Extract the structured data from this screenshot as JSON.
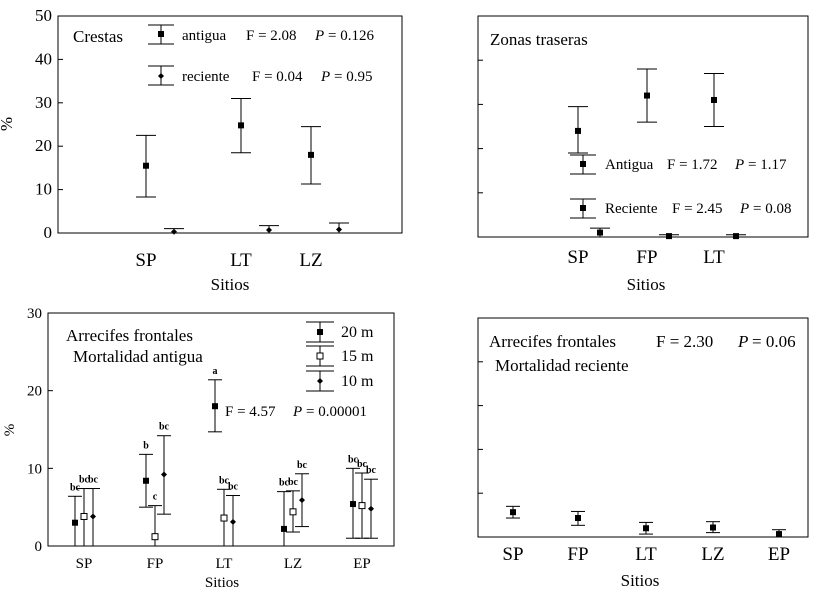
{
  "chart_data": [
    {
      "type": "scatter",
      "title": "Crestas",
      "xlabel": "Sitios",
      "ylabel": "%",
      "ylim": [
        0,
        50
      ],
      "yticks": [
        "0",
        "10",
        "20",
        "30",
        "40",
        "50"
      ],
      "categories": [
        "SP",
        "LT",
        "LZ"
      ],
      "legend_position": "top-right",
      "series": [
        {
          "name": "antigua",
          "marker": "square",
          "values": [
            15.5,
            24.8,
            18.0
          ],
          "lower": [
            8.3,
            18.5,
            11.3
          ],
          "upper": [
            22.5,
            31.0,
            24.5
          ]
        },
        {
          "name": "reciente",
          "marker": "diamond",
          "values": [
            0.3,
            0.7,
            0.8
          ],
          "lower": [
            0.0,
            0.0,
            0.0
          ],
          "upper": [
            1.0,
            1.7,
            2.3
          ]
        }
      ],
      "stats": [
        {
          "label": "antigua",
          "f_text": "F = 2.08",
          "p_label": "P",
          "p_value": "= 0.126"
        },
        {
          "label": "reciente",
          "f_text": "F = 0.04",
          "p_label": "P",
          "p_value": "= 0.95"
        }
      ]
    },
    {
      "type": "scatter",
      "title": "Zonas traseras",
      "xlabel": "Sitios",
      "ylabel": "",
      "ylim": [
        0,
        50
      ],
      "categories": [
        "SP",
        "FP",
        "LT"
      ],
      "legend_position": "bottom-right",
      "series": [
        {
          "name": "Antigua",
          "marker": "square",
          "values": [
            24.0,
            32.0,
            31.0
          ],
          "lower": [
            19.0,
            26.0,
            25.0
          ],
          "upper": [
            29.5,
            38.0,
            37.0
          ]
        },
        {
          "name": "Reciente",
          "marker": "square",
          "values": [
            1.0,
            0.2,
            0.2
          ],
          "lower": [
            0.0,
            0.0,
            0.0
          ],
          "upper": [
            2.0,
            0.5,
            0.5
          ]
        }
      ],
      "stats": [
        {
          "label": "Antigua",
          "f_text": "F = 1.72",
          "p_label": "P",
          "p_value": "= 1.17"
        },
        {
          "label": "Reciente",
          "f_text": "F = 2.45",
          "p_label": "P",
          "p_value": "= 0.08"
        }
      ]
    },
    {
      "type": "scatter",
      "title": "Arrecifes frontales",
      "subtitle": "Mortalidad antigua",
      "xlabel": "Sitios",
      "ylabel": "%",
      "ylim": [
        0,
        30
      ],
      "yticks": [
        "0",
        "10",
        "20",
        "30"
      ],
      "categories": [
        "SP",
        "FP",
        "LT",
        "LZ",
        "EP"
      ],
      "legend_position": "top-right",
      "series": [
        {
          "name": "20 m",
          "marker": "square",
          "values": [
            3.0,
            8.4,
            18.0,
            2.2,
            5.4
          ],
          "lower": [
            0.0,
            5.0,
            14.7,
            0.0,
            1.0
          ],
          "upper": [
            6.4,
            11.8,
            21.4,
            7.0,
            10.0
          ],
          "letters": [
            "bc",
            "b",
            "a",
            "bc",
            "bc"
          ]
        },
        {
          "name": "15 m",
          "marker": "open-square",
          "values": [
            3.8,
            1.2,
            3.6,
            4.4,
            5.2
          ],
          "lower": [
            0.0,
            0.0,
            0.0,
            1.8,
            1.0
          ],
          "upper": [
            7.4,
            5.2,
            7.3,
            7.1,
            9.4
          ],
          "letters": [
            "bc",
            "c",
            "bc",
            "bc",
            "bc"
          ]
        },
        {
          "name": "10 m",
          "marker": "diamond",
          "values": [
            3.8,
            9.2,
            3.1,
            5.9,
            4.8
          ],
          "lower": [
            0.0,
            4.1,
            0.0,
            2.5,
            1.0
          ],
          "upper": [
            7.4,
            14.2,
            6.5,
            9.3,
            8.6
          ],
          "letters": [
            "bc",
            "bc",
            "bc",
            "bc",
            "bc"
          ]
        }
      ],
      "stats": [
        {
          "label": "",
          "f_text": "F = 4.57",
          "p_label": "P",
          "p_value": "= 0.00001"
        }
      ]
    },
    {
      "type": "scatter",
      "title": "Arrecifes frontales",
      "subtitle": "Mortalidad reciente",
      "xlabel": "Sitios",
      "ylabel": "",
      "ylim": [
        0,
        30
      ],
      "categories": [
        "SP",
        "FP",
        "LT",
        "LZ",
        "EP"
      ],
      "series": [
        {
          "name": "",
          "marker": "square",
          "values": [
            3.4,
            2.6,
            1.2,
            1.3,
            0.4
          ],
          "lower": [
            2.6,
            1.6,
            0.4,
            0.6,
            0.0
          ],
          "upper": [
            4.2,
            3.5,
            2.0,
            2.1,
            1.0
          ]
        }
      ],
      "stats": [
        {
          "label": "",
          "f_text": "F = 2.30",
          "p_label": "P",
          "p_value": "= 0.06"
        }
      ]
    }
  ]
}
